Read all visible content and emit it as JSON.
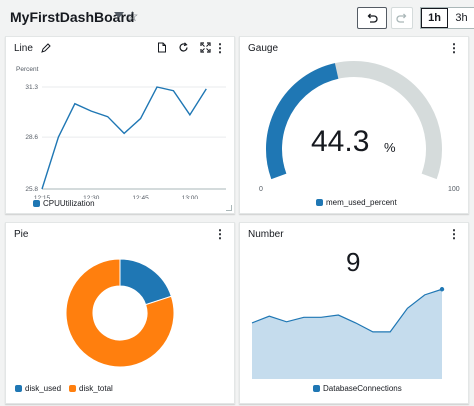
{
  "dashboard": {
    "title": "MyFirstDashBoard",
    "time_ranges": [
      "1h",
      "3h"
    ],
    "active_range": "1h"
  },
  "line_widget": {
    "title": "Line",
    "y_label": "Percent",
    "legend": "CPUUtilization",
    "color": "#1f77b4",
    "chart_data": {
      "type": "line",
      "ylabel": "Percent",
      "y_ticks": [
        "31.3",
        "28.6",
        "25.8"
      ],
      "x_ticks": [
        "12:15",
        "12:30",
        "12:45",
        "13:00"
      ],
      "ylim": [
        25.8,
        31.3
      ],
      "x": [
        "12:15",
        "12:20",
        "12:25",
        "12:30",
        "12:35",
        "12:40",
        "12:45",
        "12:50",
        "12:55",
        "13:00",
        "13:05"
      ],
      "series": [
        {
          "name": "CPUUtilization",
          "values": [
            25.8,
            28.6,
            30.4,
            30.0,
            29.7,
            28.8,
            29.6,
            31.3,
            31.1,
            29.8,
            31.2
          ]
        }
      ]
    }
  },
  "gauge_widget": {
    "title": "Gauge",
    "value": "44.3",
    "unit": "%",
    "min": "0",
    "max": "100",
    "legend": "mem_used_percent",
    "color": "#1f77b4",
    "track_color": "#d5dbdb",
    "chart_data": {
      "type": "gauge",
      "value": 44.3,
      "range": [
        0,
        100
      ]
    }
  },
  "pie_widget": {
    "title": "Pie",
    "legend": [
      {
        "label": "disk_used",
        "color": "#1f77b4"
      },
      {
        "label": "disk_total",
        "color": "#ff7f0e"
      }
    ],
    "chart_data": {
      "type": "pie",
      "categories": [
        "disk_used",
        "disk_total"
      ],
      "values": [
        20,
        80
      ]
    }
  },
  "number_widget": {
    "title": "Number",
    "value": "9",
    "legend": "DatabaseConnections",
    "color": "#1f77b4",
    "fill": "#c5dced",
    "chart_data": {
      "type": "area",
      "series": [
        {
          "name": "DatabaseConnections",
          "values": [
            5.0,
            5.6,
            5.1,
            5.5,
            5.5,
            5.7,
            5.0,
            4.2,
            4.2,
            6.3,
            7.5,
            8.0
          ]
        }
      ]
    }
  }
}
